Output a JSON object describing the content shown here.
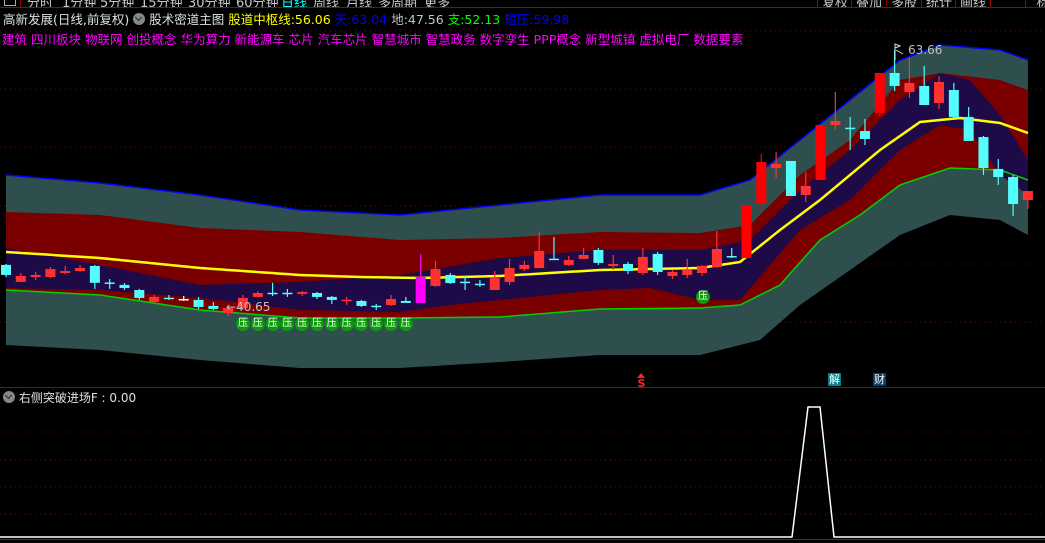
{
  "toolbar": {
    "tabs": [
      "分时",
      "1分钟",
      "5分钟",
      "15分钟",
      "30分钟",
      "60分钟",
      "日线",
      "周线",
      "月线",
      "多周期",
      "更多"
    ],
    "active_tab": "日线",
    "right_buttons": [
      "复权",
      "叠加",
      "多股",
      "统计",
      "画线",
      "···",
      "标"
    ]
  },
  "header": {
    "stock_name": "高新发展(日线,前复权)",
    "indicator_name": "股术密道主图",
    "hub_label": "股道中枢线:",
    "hub_value": "56.06",
    "sky_label": "天:",
    "sky_value": "63.04",
    "earth_label": "地:",
    "earth_value": "47.56",
    "support_label": "支:",
    "support_value": "52.13",
    "short_pressure_label": "短压:",
    "short_pressure_value": "59.98"
  },
  "tags": [
    "建筑",
    "四川板块",
    "物联网",
    "创投概念",
    "华为算力",
    "新能源车",
    "芯片",
    "汽车芯片",
    "智慧城市",
    "智慧政务",
    "数字孪生",
    "PPP概念",
    "新型城镇",
    "虚拟电厂",
    "数据要素"
  ],
  "colors": {
    "hub": "#ffff00",
    "sky": "#0000ff",
    "earth": "#c0c0c0",
    "support": "#00ff00",
    "short_pressure": "#0000ff",
    "up_candle": "#ff3232",
    "down_candle": "#54fcfc",
    "limit_candle": "#ff00ff",
    "band_outer": "#2f4f4f",
    "band_mid": "#7a0000",
    "band_inner": "#1e0a46"
  },
  "markers": {
    "low_label": "←40.65",
    "high_label": "63.66",
    "pressure_glyph": "压",
    "sell_glyph": "S",
    "unlock_glyph": "解",
    "finance_glyph": "财"
  },
  "candles_ohlc": [
    [
      45.07,
      45.15,
      44.02,
      44.2
    ],
    [
      43.6,
      44.37,
      43.6,
      44.11
    ],
    [
      44.02,
      44.46,
      43.77,
      44.2
    ],
    [
      44.02,
      44.89,
      43.93,
      44.71
    ],
    [
      44.37,
      44.98,
      44.28,
      44.54
    ],
    [
      44.54,
      45.07,
      44.46,
      44.8
    ],
    [
      44.98,
      45.07,
      42.99,
      43.52
    ],
    [
      43.55,
      43.85,
      42.99,
      43.5
    ],
    [
      43.34,
      43.5,
      42.9,
      43.07
    ],
    [
      42.9,
      42.99,
      42.04,
      42.21
    ],
    [
      41.86,
      42.47,
      41.78,
      42.3
    ],
    [
      42.23,
      42.47,
      42.04,
      42.19
    ],
    [
      42.12,
      42.38,
      41.95,
      42.12
    ],
    [
      42.04,
      42.3,
      41.26,
      41.43
    ],
    [
      41.52,
      41.86,
      41.17,
      41.26
    ],
    [
      40.91,
      41.43,
      40.65,
      41.34
    ],
    [
      41.34,
      42.47,
      41.17,
      42.21
    ],
    [
      42.3,
      42.81,
      42.3,
      42.64
    ],
    [
      42.66,
      43.52,
      42.38,
      42.62
    ],
    [
      42.66,
      42.99,
      42.3,
      42.62
    ],
    [
      42.56,
      42.81,
      42.38,
      42.73
    ],
    [
      42.64,
      42.73,
      42.12,
      42.3
    ],
    [
      42.3,
      42.38,
      41.69,
      42.04
    ],
    [
      42.02,
      42.3,
      41.6,
      42.06
    ],
    [
      41.95,
      42.04,
      41.43,
      41.52
    ],
    [
      41.54,
      41.69,
      41.17,
      41.5
    ],
    [
      41.6,
      42.47,
      41.52,
      42.12
    ],
    [
      41.95,
      42.3,
      41.78,
      41.78
    ],
    [
      41.78,
      46.02,
      41.78,
      44.02
    ],
    [
      43.25,
      45.41,
      43.16,
      44.71
    ],
    [
      44.2,
      44.37,
      43.42,
      43.5
    ],
    [
      43.62,
      44.11,
      42.9,
      43.58
    ],
    [
      43.44,
      43.77,
      43.16,
      43.4
    ],
    [
      42.9,
      44.54,
      42.9,
      43.93
    ],
    [
      43.59,
      45.58,
      43.33,
      44.8
    ],
    [
      44.71,
      45.41,
      44.54,
      45.07
    ],
    [
      44.8,
      47.92,
      44.8,
      46.27
    ],
    [
      45.61,
      47.49,
      45.57,
      45.57
    ],
    [
      45.07,
      45.84,
      44.98,
      45.5
    ],
    [
      45.59,
      46.53,
      45.58,
      45.93
    ],
    [
      46.36,
      46.53,
      45.07,
      45.24
    ],
    [
      44.98,
      45.93,
      44.63,
      45.15
    ],
    [
      45.15,
      45.33,
      44.28,
      44.54
    ],
    [
      44.37,
      46.53,
      44.2,
      45.76
    ],
    [
      46.02,
      46.19,
      44.2,
      44.46
    ],
    [
      44.11,
      44.63,
      43.85,
      44.46
    ],
    [
      44.2,
      45.58,
      43.93,
      44.63
    ],
    [
      44.37,
      45.07,
      44.11,
      44.98
    ],
    [
      44.89,
      48.0,
      44.8,
      46.45
    ],
    [
      45.84,
      46.53,
      45.67,
      45.8
    ],
    [
      45.67,
      50.25,
      45.67,
      50.25
    ],
    [
      50.34,
      54.66,
      49.73,
      53.97
    ],
    [
      53.45,
      54.83,
      52.59,
      53.8
    ],
    [
      54.06,
      54.06,
      51.03,
      51.03
    ],
    [
      51.12,
      53.11,
      50.51,
      51.9
    ],
    [
      52.42,
      57.17,
      52.42,
      57.17
    ],
    [
      57.17,
      60.03,
      56.74,
      57.52
    ],
    [
      56.94,
      57.87,
      55.01,
      56.91
    ],
    [
      56.65,
      57.69,
      55.44,
      55.96
    ],
    [
      58.21,
      61.67,
      57.95,
      61.67
    ],
    [
      61.67,
      63.66,
      60.11,
      60.55
    ],
    [
      60.03,
      63.05,
      59.51,
      60.81
    ],
    [
      60.55,
      62.28,
      58.9,
      58.9
    ],
    [
      59.08,
      61.41,
      58.56,
      60.89
    ],
    [
      60.2,
      60.81,
      57.78,
      57.87
    ],
    [
      57.87,
      58.73,
      55.79,
      55.79
    ],
    [
      56.13,
      56.22,
      52.85,
      53.45
    ],
    [
      53.37,
      54.23,
      51.98,
      52.67
    ],
    [
      52.67,
      52.85,
      49.3,
      50.34
    ],
    [
      50.69,
      51.46,
      49.91,
      51.46
    ]
  ],
  "limit_up_candle_index": 28,
  "big_candle_indices": [
    50,
    51,
    55,
    59
  ],
  "sub_indicator": {
    "name": "右侧突破进场F",
    "value": "0.00"
  }
}
